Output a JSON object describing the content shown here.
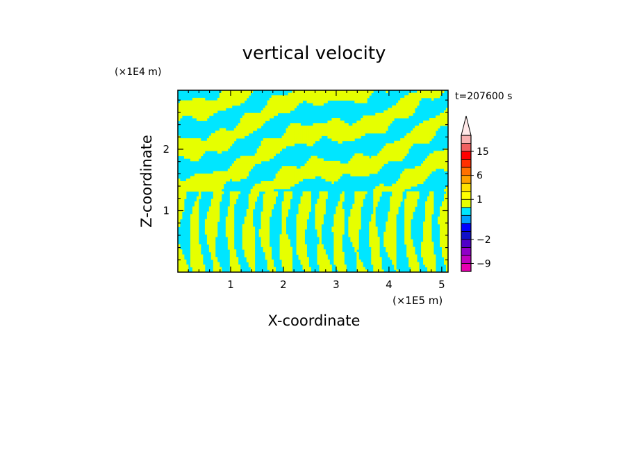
{
  "chart_data": {
    "type": "heatmap",
    "title": "vertical velocity",
    "xlabel": "X-coordinate",
    "ylabel": "Z-coordinate",
    "x_unit": "(×1E5 m)",
    "y_unit": "(×1E4 m)",
    "time_label": "t=207600 s",
    "xlim": [
      0,
      5.12
    ],
    "ylim": [
      0,
      2.96
    ],
    "x_ticks": [
      "1",
      "2",
      "3",
      "4",
      "5"
    ],
    "x_tick_values": [
      1,
      2,
      3,
      4,
      5
    ],
    "y_ticks": [
      "1",
      "2"
    ],
    "y_tick_values": [
      1,
      2
    ],
    "colorbar": {
      "labels": [
        "15",
        "6",
        "1",
        "−2",
        "−9"
      ],
      "label_values": [
        15,
        6,
        1,
        -2,
        -9
      ],
      "levels": [
        -12,
        -9,
        -6,
        -4,
        -2,
        -1,
        -0.5,
        0,
        0.5,
        1,
        2,
        4,
        6,
        9,
        12,
        15,
        20,
        25
      ],
      "colors": [
        "#e800b0",
        "#c000c0",
        "#9000c8",
        "#5000c8",
        "#1010c8",
        "#0000ff",
        "#00a0ff",
        "#00e6ff",
        "#e6ff00",
        "#ffff00",
        "#ffe000",
        "#ffa000",
        "#ff7000",
        "#ff3000",
        "#ff0000",
        "#f06060",
        "#f8b0b0"
      ],
      "extend_max": true
    },
    "field_colors": {
      "positive": "#e6ff00",
      "negative": "#00e6ff"
    }
  }
}
